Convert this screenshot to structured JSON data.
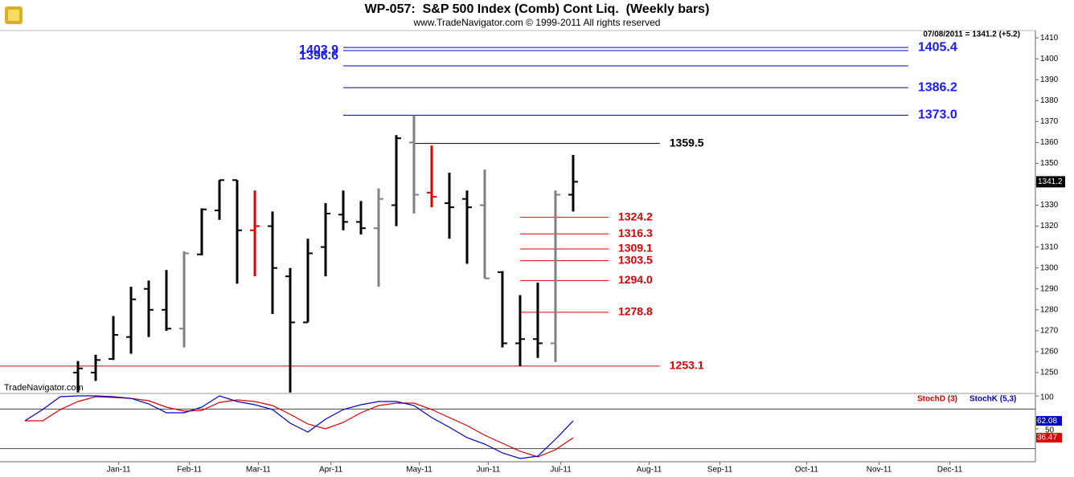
{
  "chart_data": [
    {
      "type": "ohlc",
      "title": "WP-057:  S&P 500 Index (Comb) Cont Liq.  (Weekly bars)",
      "subtitle": "www.TradeNavigator.com © 1999-2011 All rights reserved",
      "annotation": "07/08/2011 = 1341.2 (+5.2)",
      "watermark": "TradeNavigator.com",
      "x": [
        0,
        1,
        2,
        3,
        4,
        5,
        6,
        7,
        8,
        9,
        10,
        11,
        12,
        13,
        14,
        15,
        16,
        17,
        18,
        19,
        20,
        21,
        22,
        23,
        24,
        25,
        26,
        27,
        28
      ],
      "open": [
        1250,
        1250,
        1256.5,
        1267,
        1290,
        1280,
        1271,
        1306.5,
        1327.5,
        1342,
        1318,
        1320,
        1296,
        1274,
        1310,
        1325.5,
        1322,
        1319,
        1330,
        1360,
        1336,
        1331,
        1333,
        1330,
        1298,
        1264,
        1266,
        1264,
        1335
      ],
      "high": [
        1255.5,
        1258.5,
        1277,
        1291,
        1294,
        1299,
        1308,
        1328.5,
        1342,
        1342,
        1337,
        1327,
        1300,
        1314,
        1331,
        1337,
        1332,
        1338,
        1363.5,
        1373,
        1358.5,
        1345.5,
        1337,
        1347,
        1298.5,
        1287,
        1293,
        1337,
        1354
      ],
      "low": [
        1240.5,
        1246,
        1256,
        1259,
        1267,
        1270,
        1262,
        1306,
        1323,
        1292.5,
        1296,
        1278,
        1240.5,
        1274,
        1296,
        1318,
        1316,
        1291,
        1320,
        1326,
        1329,
        1314,
        1302,
        1295,
        1262,
        1253,
        1257,
        1255,
        1327
      ],
      "close": [
        1252,
        1256,
        1268,
        1285,
        1280,
        1271,
        1307,
        1328,
        1342,
        1318,
        1320,
        1300,
        1274,
        1307,
        1326,
        1322,
        1319,
        1333,
        1362,
        1335,
        1334,
        1329,
        1329,
        1295,
        1264,
        1266,
        1264,
        1335,
        1341.2
      ],
      "bar_colors": [
        "#000000",
        "#000000",
        "#000000",
        "#000000",
        "#000000",
        "#000000",
        "#808080",
        "#000000",
        "#000000",
        "#000000",
        "#e00000",
        "#000000",
        "#000000",
        "#000000",
        "#000000",
        "#000000",
        "#000000",
        "#808080",
        "#000000",
        "#808080",
        "#e00000",
        "#000000",
        "#000000",
        "#808080",
        "#000000",
        "#000000",
        "#000000",
        "#808080",
        "#000000"
      ],
      "xlim": [
        -4.41,
        54.14
      ],
      "ylim": [
        1240,
        1413.5
      ],
      "yticks": [
        1250,
        1260,
        1270,
        1280,
        1290,
        1300,
        1310,
        1320,
        1330,
        1340,
        1350,
        1360,
        1370,
        1380,
        1390,
        1400,
        1410
      ],
      "levels": [
        {
          "value": 1405.4,
          "color": "#0000cc",
          "from": 15,
          "to": 46.95,
          "label_side": "right"
        },
        {
          "value": 1403.9,
          "color": "#0000cc",
          "from": 15,
          "to": 46.95,
          "label_side": "left"
        },
        {
          "value": 1396.6,
          "color": "#0000cc",
          "from": 15,
          "to": 46.95,
          "label_side": "left"
        },
        {
          "value": 1386.2,
          "color": "#0000cc",
          "from": 15,
          "to": 46.95,
          "label_side": "right"
        },
        {
          "value": 1373,
          "label": "1373.0",
          "color": "#0000cc",
          "from": 15,
          "to": 46.95,
          "label_side": "right"
        },
        {
          "value": 1359.5,
          "color": "#000000",
          "from": 19,
          "to": 32.9,
          "label_side": "right"
        },
        {
          "value": 1324.2,
          "color": "#e00000",
          "from": 25,
          "to": 30,
          "label_side": "right"
        },
        {
          "value": 1316.3,
          "color": "#e00000",
          "from": 25,
          "to": 30,
          "label_side": "right"
        },
        {
          "value": 1309.1,
          "color": "#e00000",
          "from": 25,
          "to": 30,
          "label_side": "right"
        },
        {
          "value": 1303.5,
          "color": "#e00000",
          "from": 25,
          "to": 30,
          "label_side": "right"
        },
        {
          "value": 1294,
          "label": "1294.0",
          "color": "#e00000",
          "from": 25,
          "to": 30,
          "label_side": "right"
        },
        {
          "value": 1278.8,
          "color": "#e00000",
          "from": 25,
          "to": 30,
          "label_side": "right"
        },
        {
          "value": 1253.1,
          "color": "#e00000",
          "from": -4.41,
          "to": 32.9,
          "label_side": "right"
        }
      ]
    },
    {
      "type": "line",
      "x": [
        -3,
        -2,
        -1,
        0,
        1,
        2,
        3,
        4,
        5,
        6,
        7,
        8,
        9,
        10,
        11,
        12,
        13,
        14,
        15,
        16,
        17,
        18,
        19,
        20,
        21,
        22,
        23,
        24,
        25,
        26,
        27,
        28
      ],
      "series": [
        {
          "name": "StochD (3)",
          "color": "#e00000",
          "values": [
            62.2,
            62.2,
            79.3,
            91.5,
            98.8,
            97.6,
            96.3,
            92.7,
            82.9,
            76.8,
            78,
            90.2,
            93.9,
            91.5,
            85.4,
            72,
            57.3,
            50,
            59.8,
            74.4,
            85.4,
            89,
            89,
            79.3,
            67.1,
            54.9,
            40.2,
            28,
            15.9,
            7.3,
            18.3,
            36.47
          ]
        },
        {
          "name": "StochK (5,3)",
          "color": "#0000cc",
          "values": [
            62.2,
            79.3,
            98.8,
            100,
            100,
            98.8,
            96.3,
            87.8,
            74.4,
            74.4,
            82.9,
            100,
            91.5,
            86.6,
            79.3,
            58.5,
            45.1,
            64.6,
            79.3,
            86.6,
            91.5,
            91.5,
            85.4,
            67.1,
            52.4,
            36.6,
            26.8,
            13.4,
            4.9,
            8.5,
            34.1,
            62.08
          ]
        }
      ],
      "xlim": [
        -4.41,
        54.14
      ],
      "ylim": [
        0,
        103.7
      ],
      "yticks": [
        50,
        100
      ],
      "levels": [
        80,
        20
      ],
      "xticks": [
        {
          "value": 2.3,
          "label": "Jan-11"
        },
        {
          "value": 6.3,
          "label": "Feb-11"
        },
        {
          "value": 10.2,
          "label": "Mar-11"
        },
        {
          "value": 14.3,
          "label": "Apr-11"
        },
        {
          "value": 19.3,
          "label": "May-11"
        },
        {
          "value": 23.2,
          "label": "Jun-11"
        },
        {
          "value": 27.3,
          "label": "Jul-11"
        },
        {
          "value": 32.3,
          "label": "Aug-11"
        },
        {
          "value": 36.3,
          "label": "Sep-11"
        },
        {
          "value": 41.2,
          "label": "Oct-11"
        },
        {
          "value": 45.3,
          "label": "Nov-11"
        },
        {
          "value": 49.3,
          "label": "Dec-11"
        }
      ]
    }
  ]
}
